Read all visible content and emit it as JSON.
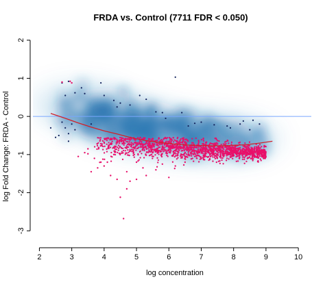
{
  "chart_data": {
    "type": "scatter",
    "title": "FRDA vs. Control (7711 FDR < 0.050)",
    "xlabel": "log concentration",
    "ylabel": "log Fold Change: FRDA - Control",
    "xlim": [
      1.8,
      10.4
    ],
    "ylim": [
      -3.3,
      2.3
    ],
    "xticks": [
      2,
      3,
      4,
      5,
      6,
      7,
      8,
      9,
      10
    ],
    "yticks": [
      -3,
      -2,
      -1,
      0,
      1,
      2
    ],
    "reference_line_y": 0,
    "colors": {
      "density": "#1f6fae",
      "significant": "#e8106a",
      "nonsignificant": "#10205a",
      "trend": "#d22028",
      "reference": "#7aa7ff"
    },
    "density_core": [
      {
        "x": 4.6,
        "y": -0.15,
        "weight": 1.0
      },
      {
        "x": 5.4,
        "y": -0.35,
        "weight": 0.9
      },
      {
        "x": 6.3,
        "y": -0.5,
        "weight": 0.8
      },
      {
        "x": 7.2,
        "y": -0.55,
        "weight": 0.7
      },
      {
        "x": 8.0,
        "y": -0.6,
        "weight": 0.5
      },
      {
        "x": 3.8,
        "y": 0.1,
        "weight": 0.7
      },
      {
        "x": 3.2,
        "y": 0.35,
        "weight": 0.4
      }
    ],
    "nonsignificant_points": [
      [
        2.7,
        0.88
      ],
      [
        2.9,
        0.92
      ],
      [
        3.3,
        0.75
      ],
      [
        3.1,
        0.62
      ],
      [
        3.4,
        0.6
      ],
      [
        2.8,
        0.55
      ],
      [
        3.9,
        0.88
      ],
      [
        4.0,
        0.55
      ],
      [
        4.3,
        0.42
      ],
      [
        4.5,
        0.35
      ],
      [
        4.4,
        0.25
      ],
      [
        4.8,
        0.3
      ],
      [
        5.1,
        0.55
      ],
      [
        5.3,
        0.45
      ],
      [
        5.6,
        0.12
      ],
      [
        5.8,
        0.1
      ],
      [
        6.2,
        1.03
      ],
      [
        5.9,
        -0.05
      ],
      [
        6.4,
        0.1
      ],
      [
        2.7,
        -0.15
      ],
      [
        2.8,
        -0.3
      ],
      [
        3.0,
        -0.2
      ],
      [
        3.1,
        -0.35
      ],
      [
        2.9,
        -0.45
      ],
      [
        2.35,
        -0.3
      ],
      [
        2.5,
        -0.55
      ],
      [
        2.9,
        -0.65
      ],
      [
        6.6,
        -0.25
      ],
      [
        7.0,
        -0.15
      ],
      [
        7.4,
        -0.22
      ],
      [
        7.8,
        -0.25
      ],
      [
        8.2,
        -0.2
      ],
      [
        8.6,
        -0.1
      ],
      [
        8.8,
        -0.2
      ],
      [
        7.9,
        -0.3
      ],
      [
        8.5,
        -0.35
      ],
      [
        2.6,
        -0.5
      ],
      [
        3.6,
        -0.2
      ],
      [
        6.8,
        -0.18
      ],
      [
        8.3,
        -0.12
      ]
    ],
    "significant_points": [
      [
        4.5,
        -2.12
      ],
      [
        4.6,
        -2.68
      ],
      [
        3.6,
        -1.45
      ],
      [
        3.4,
        -0.95
      ],
      [
        3.7,
        -1.1
      ],
      [
        3.8,
        -1.35
      ],
      [
        4.2,
        -1.55
      ],
      [
        4.4,
        -1.65
      ],
      [
        4.8,
        -1.7
      ],
      [
        5.0,
        -1.65
      ],
      [
        5.3,
        -1.55
      ],
      [
        5.6,
        -1.4
      ],
      [
        6.0,
        -1.6
      ],
      [
        6.5,
        -1.2
      ],
      [
        3.5,
        -0.98
      ],
      [
        3.9,
        -1.2
      ],
      [
        4.1,
        -1.2
      ],
      [
        4.7,
        -1.45
      ],
      [
        5.2,
        -1.35
      ],
      [
        7.0,
        -1.1
      ],
      [
        2.7,
        0.9
      ],
      [
        3.0,
        0.88
      ],
      [
        4.7,
        -1.9
      ],
      [
        3.2,
        -1.05
      ],
      [
        5.8,
        -1.25
      ],
      [
        6.2,
        -1.3
      ],
      [
        4.3,
        -1.0
      ],
      [
        5.5,
        -0.95
      ],
      [
        3.5,
        -0.85
      ],
      [
        2.95,
        0.92
      ],
      [
        5.0,
        -1.2
      ],
      [
        6.8,
        -1.05
      ],
      [
        4.0,
        -1.3
      ]
    ],
    "significant_band": {
      "x_min": 3.7,
      "x_max": 9.0,
      "y_center": -0.82,
      "y_spread": 0.22,
      "count": 1600
    },
    "trend_line": {
      "x": [
        2.35,
        2.8,
        3.2,
        3.6,
        4.0,
        4.4,
        4.8,
        5.2,
        5.6,
        6.0,
        6.4,
        6.8,
        7.2,
        7.6,
        8.0,
        8.4,
        8.8,
        9.2
      ],
      "y": [
        0.08,
        -0.05,
        -0.17,
        -0.28,
        -0.38,
        -0.46,
        -0.55,
        -0.62,
        -0.67,
        -0.71,
        -0.74,
        -0.76,
        -0.77,
        -0.77,
        -0.76,
        -0.74,
        -0.7,
        -0.65
      ]
    }
  }
}
